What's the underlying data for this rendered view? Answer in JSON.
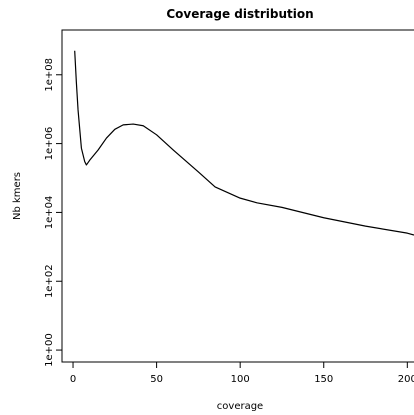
{
  "chart_data": {
    "type": "line",
    "title": "Coverage distribution",
    "x_label": "coverage",
    "y_label": "Nb kmers",
    "x": [
      1,
      2,
      3,
      5,
      7,
      8,
      10,
      15,
      20,
      25,
      30,
      36,
      42,
      50,
      60,
      75,
      85,
      100,
      110,
      125,
      150,
      175,
      200,
      204
    ],
    "series": [
      {
        "name": "Nb kmers",
        "color": "#000000",
        "values": [
          500000000,
          60000000,
          9500000,
          740000,
          300000,
          240000,
          330000,
          650000,
          1450000,
          2600000,
          3500000,
          3700000,
          3300000,
          1800000,
          650000,
          150000,
          55000,
          26000,
          19000,
          14000,
          7000,
          4000,
          2500,
          2200
        ]
      }
    ],
    "xlim": [
      -6.6,
      204
    ],
    "xticks": [
      0,
      50,
      100,
      150,
      200
    ],
    "ylim": [
      0.45,
      2000000000
    ],
    "y_log": true,
    "yticks": [
      {
        "value": 1,
        "label": "1e+00"
      },
      {
        "value": 100,
        "label": "1e+02"
      },
      {
        "value": 10000,
        "label": "1e+04"
      },
      {
        "value": 1000000,
        "label": "1e+06"
      },
      {
        "value": 100000000,
        "label": "1e+08"
      }
    ],
    "grid": false
  }
}
